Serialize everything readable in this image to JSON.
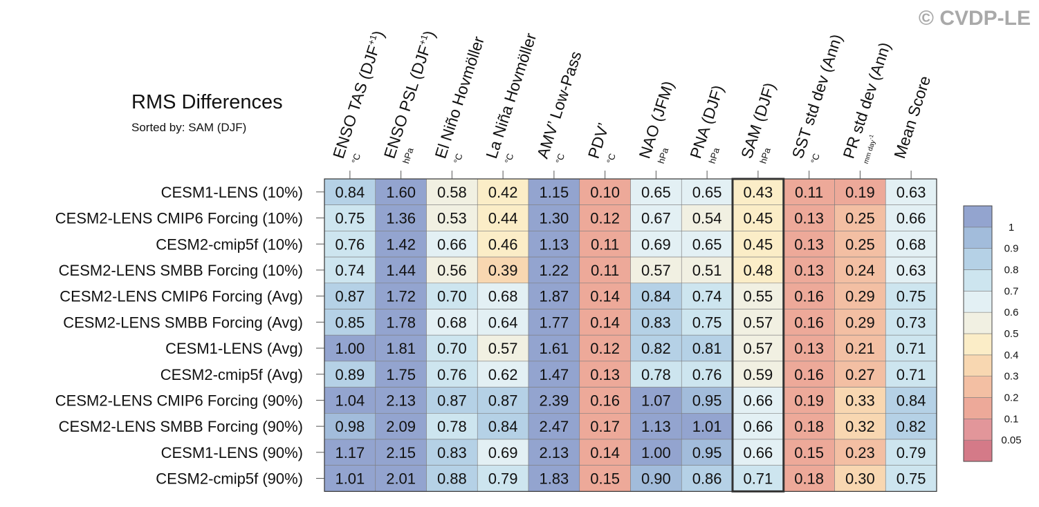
{
  "watermark": "© CVDP-LE",
  "title": "RMS Differences",
  "subtitle": "Sorted by: SAM (DJF)",
  "chart_data": {
    "type": "heatmap",
    "columns": [
      {
        "name": "ENSO TAS (DJF",
        "sup": "+1",
        "close": ")",
        "unit": "°C",
        "unit_style": "small"
      },
      {
        "name": "ENSO PSL (DJF",
        "sup": "+1",
        "close": ")",
        "unit": "hPa",
        "unit_style": "small"
      },
      {
        "name": "El Niño Hovmöller",
        "sup": "",
        "close": "",
        "unit": "°C",
        "unit_style": "small"
      },
      {
        "name": "La Niña Hovmöller",
        "sup": "",
        "close": "",
        "unit": "°C",
        "unit_style": "small"
      },
      {
        "name": "AMV’ Low-Pass",
        "sup": "",
        "close": "",
        "unit": "°C",
        "unit_style": "small"
      },
      {
        "name": "PDV’",
        "sup": "",
        "close": "",
        "unit": "°C",
        "unit_style": "small"
      },
      {
        "name": "NAO (JFM)",
        "sup": "",
        "close": "",
        "unit": "hPa",
        "unit_style": "small"
      },
      {
        "name": "PNA (DJF)",
        "sup": "",
        "close": "",
        "unit": "hPa",
        "unit_style": "small"
      },
      {
        "name": "SAM (DJF)",
        "sup": "",
        "close": "",
        "unit": "hPa",
        "unit_style": "small"
      },
      {
        "name": "SST std dev (Ann)",
        "sup": "",
        "close": "",
        "unit": "°C",
        "unit_style": "small"
      },
      {
        "name": "PR std dev (Ann)",
        "sup": "",
        "close": "",
        "unit": "mm day",
        "unit_sup": "-1",
        "unit_style": "tiny"
      },
      {
        "name": "Mean Score",
        "sup": "",
        "close": "",
        "unit": "",
        "unit_style": "small"
      }
    ],
    "rows": [
      {
        "label": "CESM1-LENS (10%)",
        "values": [
          "0.84",
          "1.60",
          "0.58",
          "0.42",
          "1.15",
          "0.10",
          "0.65",
          "0.65",
          "0.43",
          "0.11",
          "0.19",
          "0.63"
        ]
      },
      {
        "label": "CESM2-LENS CMIP6 Forcing (10%)",
        "values": [
          "0.75",
          "1.36",
          "0.53",
          "0.44",
          "1.30",
          "0.12",
          "0.67",
          "0.54",
          "0.45",
          "0.13",
          "0.25",
          "0.66"
        ]
      },
      {
        "label": "CESM2-cmip5f (10%)",
        "values": [
          "0.76",
          "1.42",
          "0.66",
          "0.46",
          "1.13",
          "0.11",
          "0.69",
          "0.65",
          "0.45",
          "0.13",
          "0.25",
          "0.68"
        ]
      },
      {
        "label": "CESM2-LENS SMBB Forcing (10%)",
        "values": [
          "0.74",
          "1.44",
          "0.56",
          "0.39",
          "1.22",
          "0.11",
          "0.57",
          "0.51",
          "0.48",
          "0.13",
          "0.24",
          "0.63"
        ]
      },
      {
        "label": "CESM2-LENS CMIP6 Forcing (Avg)",
        "values": [
          "0.87",
          "1.72",
          "0.70",
          "0.68",
          "1.87",
          "0.14",
          "0.84",
          "0.74",
          "0.55",
          "0.16",
          "0.29",
          "0.75"
        ]
      },
      {
        "label": "CESM2-LENS SMBB Forcing (Avg)",
        "values": [
          "0.85",
          "1.78",
          "0.68",
          "0.64",
          "1.77",
          "0.14",
          "0.83",
          "0.75",
          "0.57",
          "0.16",
          "0.29",
          "0.73"
        ]
      },
      {
        "label": "CESM1-LENS (Avg)",
        "values": [
          "1.00",
          "1.81",
          "0.70",
          "0.57",
          "1.61",
          "0.12",
          "0.82",
          "0.81",
          "0.57",
          "0.13",
          "0.21",
          "0.71"
        ]
      },
      {
        "label": "CESM2-cmip5f (Avg)",
        "values": [
          "0.89",
          "1.75",
          "0.76",
          "0.62",
          "1.47",
          "0.13",
          "0.78",
          "0.76",
          "0.59",
          "0.16",
          "0.27",
          "0.71"
        ]
      },
      {
        "label": "CESM2-LENS CMIP6 Forcing (90%)",
        "values": [
          "1.04",
          "2.13",
          "0.87",
          "0.87",
          "2.39",
          "0.16",
          "1.07",
          "0.95",
          "0.66",
          "0.19",
          "0.33",
          "0.84"
        ]
      },
      {
        "label": "CESM2-LENS SMBB Forcing (90%)",
        "values": [
          "0.98",
          "2.09",
          "0.78",
          "0.84",
          "2.47",
          "0.17",
          "1.13",
          "1.01",
          "0.66",
          "0.18",
          "0.32",
          "0.82"
        ]
      },
      {
        "label": "CESM1-LENS (90%)",
        "values": [
          "1.17",
          "2.15",
          "0.83",
          "0.69",
          "2.13",
          "0.14",
          "1.00",
          "0.95",
          "0.66",
          "0.15",
          "0.23",
          "0.79"
        ]
      },
      {
        "label": "CESM2-cmip5f (90%)",
        "values": [
          "1.01",
          "2.01",
          "0.88",
          "0.79",
          "1.83",
          "0.15",
          "0.90",
          "0.86",
          "0.71",
          "0.18",
          "0.30",
          "0.75"
        ]
      }
    ],
    "highlight_column": "SAM (DJF)",
    "colorbar": {
      "levels": [
        "0.05",
        "0.1",
        "0.2",
        "0.3",
        "0.4",
        "0.5",
        "0.6",
        "0.7",
        "0.8",
        "0.9",
        "1"
      ],
      "colors": [
        "#d47a88",
        "#e2969a",
        "#eda999",
        "#f3bfa3",
        "#f8d7b1",
        "#fbedc7",
        "#f1f0e2",
        "#e3f0f4",
        "#cde5ef",
        "#b5d1e6",
        "#a2bcdb",
        "#93a4cf"
      ]
    }
  }
}
